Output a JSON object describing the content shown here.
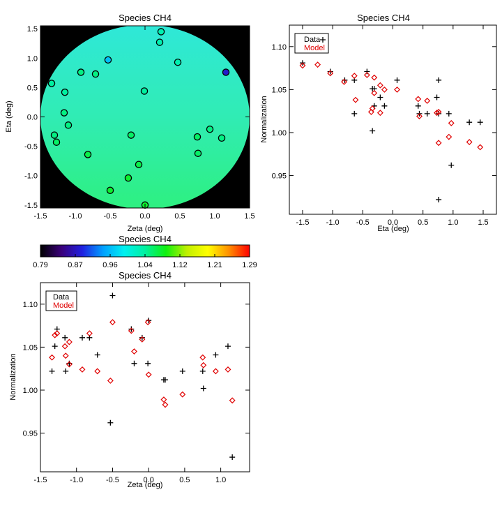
{
  "chart_data": [
    {
      "type": "scatter",
      "title": "Species CH4",
      "xlabel": "Zeta (deg)",
      "ylabel": "Eta (deg)",
      "xlim": [
        -1.5,
        1.5
      ],
      "ylim": [
        -1.55,
        1.55
      ],
      "xticks": [
        -1.5,
        -1.0,
        -0.5,
        0.0,
        0.5,
        1.0,
        1.5
      ],
      "xtick_labels": [
        "-1.5",
        "-1.0",
        "-0.5",
        "0.0",
        "0.5",
        "1.0",
        "1.5"
      ],
      "yticks": [
        -1.5,
        -1.0,
        -0.5,
        0.0,
        0.5,
        1.0,
        1.5
      ],
      "ytick_labels": [
        "-1.5",
        "-1.0",
        "-0.5",
        "0.0",
        "0.5",
        "1.0",
        "1.5"
      ],
      "background_colors": {
        "outside": "#000000",
        "disk_top": "#2fe8d8",
        "disk_mid": "#30ecb4",
        "disk_bottom": "#2ef080"
      },
      "points": [
        {
          "zeta": 0.23,
          "eta": 1.45,
          "value": 1.03
        },
        {
          "zeta": 0.21,
          "eta": 1.27,
          "value": 1.03
        },
        {
          "zeta": -0.53,
          "eta": 0.97,
          "value": 0.96
        },
        {
          "zeta": 0.47,
          "eta": 0.93,
          "value": 1.03
        },
        {
          "zeta": 1.16,
          "eta": 0.76,
          "value": 0.88
        },
        {
          "zeta": -0.92,
          "eta": 0.76,
          "value": 1.05
        },
        {
          "zeta": -0.71,
          "eta": 0.73,
          "value": 1.05
        },
        {
          "zeta": -1.34,
          "eta": 0.57,
          "value": 1.04
        },
        {
          "zeta": -1.15,
          "eta": 0.42,
          "value": 1.04
        },
        {
          "zeta": -0.01,
          "eta": 0.44,
          "value": 1.04
        },
        {
          "zeta": -1.16,
          "eta": 0.07,
          "value": 1.05
        },
        {
          "zeta": -1.1,
          "eta": -0.14,
          "value": 1.05
        },
        {
          "zeta": -1.3,
          "eta": -0.31,
          "value": 1.05
        },
        {
          "zeta": -1.27,
          "eta": -0.43,
          "value": 1.06
        },
        {
          "zeta": -0.2,
          "eta": -0.31,
          "value": 1.06
        },
        {
          "zeta": 0.75,
          "eta": -0.34,
          "value": 1.06
        },
        {
          "zeta": 0.93,
          "eta": -0.21,
          "value": 1.05
        },
        {
          "zeta": 1.1,
          "eta": -0.36,
          "value": 1.05
        },
        {
          "zeta": -0.82,
          "eta": -0.64,
          "value": 1.07
        },
        {
          "zeta": 0.76,
          "eta": -0.62,
          "value": 1.06
        },
        {
          "zeta": -0.09,
          "eta": -0.81,
          "value": 1.07
        },
        {
          "zeta": -0.24,
          "eta": -1.04,
          "value": 1.08
        },
        {
          "zeta": -0.5,
          "eta": -1.25,
          "value": 1.08
        },
        {
          "zeta": 0.0,
          "eta": -1.5,
          "value": 1.08
        }
      ]
    },
    {
      "type": "colorbar",
      "title": "Species CH4",
      "range": [
        0.79,
        1.29
      ],
      "tick_labels": [
        "0.79",
        "0.87",
        "0.96",
        "1.04",
        "1.12",
        "1.21",
        "1.29"
      ],
      "colors": [
        "#000000",
        "#3a007a",
        "#2020e0",
        "#00a0ff",
        "#00f0f0",
        "#00f0a0",
        "#10f010",
        "#c0f000",
        "#ffff00",
        "#ff9000",
        "#ff0000"
      ]
    },
    {
      "type": "scatter",
      "title": "Species CH4",
      "xlabel": "Eta (deg)",
      "ylabel": "Normalization",
      "xlim": [
        -1.72,
        1.72
      ],
      "ylim": [
        0.905,
        1.125
      ],
      "xticks": [
        -1.5,
        -1.0,
        -0.5,
        0.0,
        0.5,
        1.0,
        1.5
      ],
      "xtick_labels": [
        "-1.5",
        "-1.0",
        "-0.5",
        "0.0",
        "0.5",
        "1.0",
        "1.5"
      ],
      "yticks": [
        0.95,
        1.0,
        1.05,
        1.1
      ],
      "ytick_labels": [
        "0.95",
        "1.00",
        "1.05",
        "1.10"
      ],
      "legend": {
        "position": "top-left",
        "entries": [
          {
            "label": "Data",
            "color": "#000000"
          },
          {
            "label": "Model",
            "color": "#e00000"
          }
        ]
      },
      "series": [
        {
          "name": "Data",
          "marker": "plus",
          "color": "#000000",
          "points": [
            [
              -1.5,
              1.081
            ],
            [
              -1.04,
              1.071
            ],
            [
              -0.8,
              1.061
            ],
            [
              -0.64,
              1.061
            ],
            [
              -0.64,
              1.022
            ],
            [
              -0.43,
              1.071
            ],
            [
              -0.34,
              1.051
            ],
            [
              -0.31,
              1.051
            ],
            [
              -0.31,
              1.031
            ],
            [
              -0.34,
              1.002
            ],
            [
              -0.21,
              1.041
            ],
            [
              -0.14,
              1.031
            ],
            [
              0.07,
              1.061
            ],
            [
              0.42,
              1.031
            ],
            [
              0.44,
              1.022
            ],
            [
              0.57,
              1.022
            ],
            [
              0.73,
              1.041
            ],
            [
              0.76,
              1.061
            ],
            [
              0.76,
              1.022
            ],
            [
              0.76,
              0.922
            ],
            [
              0.93,
              1.022
            ],
            [
              0.97,
              0.962
            ],
            [
              1.27,
              1.012
            ],
            [
              1.45,
              1.012
            ]
          ]
        },
        {
          "name": "Model",
          "marker": "diamond",
          "color": "#e00000",
          "points": [
            [
              -1.5,
              1.078
            ],
            [
              -1.25,
              1.079
            ],
            [
              -1.04,
              1.069
            ],
            [
              -0.81,
              1.059
            ],
            [
              -0.64,
              1.066
            ],
            [
              -0.62,
              1.038
            ],
            [
              -0.43,
              1.067
            ],
            [
              -0.36,
              1.024
            ],
            [
              -0.34,
              1.028
            ],
            [
              -0.31,
              1.064
            ],
            [
              -0.31,
              1.046
            ],
            [
              -0.21,
              1.055
            ],
            [
              -0.21,
              1.023
            ],
            [
              -0.14,
              1.05
            ],
            [
              0.07,
              1.05
            ],
            [
              0.42,
              1.039
            ],
            [
              0.44,
              1.019
            ],
            [
              0.57,
              1.037
            ],
            [
              0.73,
              1.023
            ],
            [
              0.76,
              1.024
            ],
            [
              0.76,
              0.988
            ],
            [
              0.93,
              0.995
            ],
            [
              0.97,
              1.011
            ],
            [
              1.27,
              0.989
            ],
            [
              1.45,
              0.983
            ]
          ]
        }
      ]
    },
    {
      "type": "scatter",
      "title": "Species CH4",
      "xlabel": "Zeta (deg)",
      "ylabel": "Normalization",
      "xlim": [
        -1.5,
        1.4
      ],
      "ylim": [
        0.905,
        1.125
      ],
      "xticks": [
        -1.5,
        -1.0,
        -0.5,
        0.0,
        0.5,
        1.0
      ],
      "xtick_labels": [
        "-1.5",
        "-1.0",
        "-0.5",
        "0.0",
        "0.5",
        "1.0"
      ],
      "yticks": [
        0.95,
        1.0,
        1.05,
        1.1
      ],
      "ytick_labels": [
        "0.95",
        "1.00",
        "1.05",
        "1.10"
      ],
      "legend": {
        "position": "top-left",
        "entries": [
          {
            "label": "Data",
            "color": "#000000"
          },
          {
            "label": "Model",
            "color": "#e00000"
          }
        ]
      },
      "series": [
        {
          "name": "Data",
          "marker": "plus",
          "color": "#000000",
          "points": [
            [
              -1.34,
              1.022
            ],
            [
              -1.3,
              1.051
            ],
            [
              -1.27,
              1.071
            ],
            [
              -1.16,
              1.061
            ],
            [
              -1.15,
              1.022
            ],
            [
              -1.1,
              1.031
            ],
            [
              -0.92,
              1.061
            ],
            [
              -0.82,
              1.061
            ],
            [
              -0.71,
              1.041
            ],
            [
              -0.53,
              0.962
            ],
            [
              -0.5,
              1.11
            ],
            [
              -0.24,
              1.071
            ],
            [
              -0.2,
              1.031
            ],
            [
              -0.09,
              1.061
            ],
            [
              -0.01,
              1.031
            ],
            [
              0.0,
              1.081
            ],
            [
              0.21,
              1.012
            ],
            [
              0.23,
              1.012
            ],
            [
              0.47,
              1.022
            ],
            [
              0.75,
              1.022
            ],
            [
              0.76,
              1.002
            ],
            [
              0.93,
              1.041
            ],
            [
              1.1,
              1.051
            ],
            [
              1.16,
              0.922
            ]
          ]
        },
        {
          "name": "Model",
          "marker": "diamond",
          "color": "#e00000",
          "points": [
            [
              -1.34,
              1.038
            ],
            [
              -1.3,
              1.064
            ],
            [
              -1.27,
              1.066
            ],
            [
              -1.16,
              1.051
            ],
            [
              -1.15,
              1.04
            ],
            [
              -1.1,
              1.056
            ],
            [
              -1.1,
              1.03
            ],
            [
              -0.92,
              1.024
            ],
            [
              -0.82,
              1.066
            ],
            [
              -0.71,
              1.022
            ],
            [
              -0.53,
              1.011
            ],
            [
              -0.5,
              1.079
            ],
            [
              -0.24,
              1.069
            ],
            [
              -0.2,
              1.045
            ],
            [
              -0.09,
              1.059
            ],
            [
              -0.01,
              1.079
            ],
            [
              0.0,
              1.018
            ],
            [
              0.21,
              0.989
            ],
            [
              0.23,
              0.983
            ],
            [
              0.47,
              0.995
            ],
            [
              0.75,
              1.038
            ],
            [
              0.76,
              1.029
            ],
            [
              0.93,
              1.022
            ],
            [
              1.1,
              1.024
            ],
            [
              1.16,
              0.988
            ]
          ]
        }
      ]
    }
  ]
}
